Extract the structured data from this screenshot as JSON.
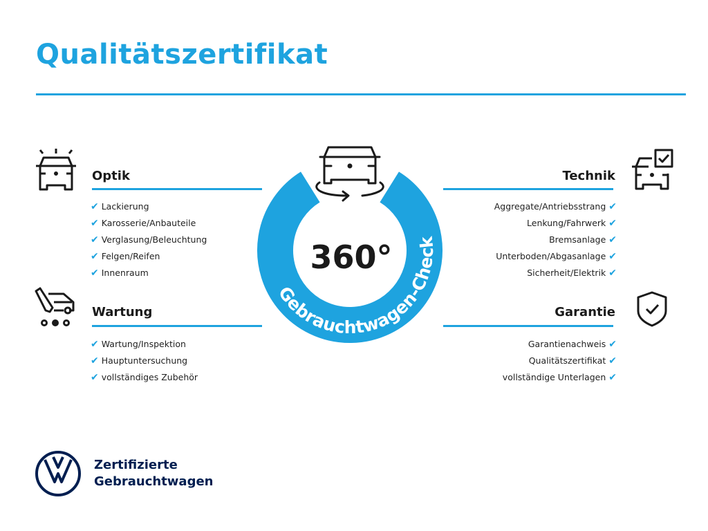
{
  "header": {
    "title": "Qualitätszertifikat"
  },
  "colors": {
    "accent": "#1ea3df",
    "text": "#1a1a1a",
    "brand_navy": "#001e50"
  },
  "center": {
    "big": "360°",
    "ring_text": "Gebrauchtwagen-Check",
    "icon": "car-rotate-icon"
  },
  "sections": {
    "optik": {
      "title": "Optik",
      "icon": "car-lights-icon",
      "items": [
        "Lackierung",
        "Karosserie/Anbauteile",
        "Verglasung/Beleuchtung",
        "Felgen/Reifen",
        "Innenraum"
      ]
    },
    "wartung": {
      "title": "Wartung",
      "icon": "car-service-icon",
      "items": [
        "Wartung/Inspektion",
        "Hauptuntersuchung",
        "vollständiges Zubehör"
      ]
    },
    "technik": {
      "title": "Technik",
      "icon": "car-checkbox-icon",
      "items": [
        "Aggregate/Antriebsstrang",
        "Lenkung/Fahrwerk",
        "Bremsanlage",
        "Unterboden/Abgasanlage",
        "Sicherheit/Elektrik"
      ]
    },
    "garantie": {
      "title": "Garantie",
      "icon": "shield-check-icon",
      "items": [
        "Garantienachweis",
        "Qualitätszertifikat",
        "vollständige Unterlagen"
      ]
    }
  },
  "check_glyph": "✔",
  "footer": {
    "line1": "Zertifizierte",
    "line2": "Gebrauchtwagen",
    "logo": "vw-logo"
  }
}
